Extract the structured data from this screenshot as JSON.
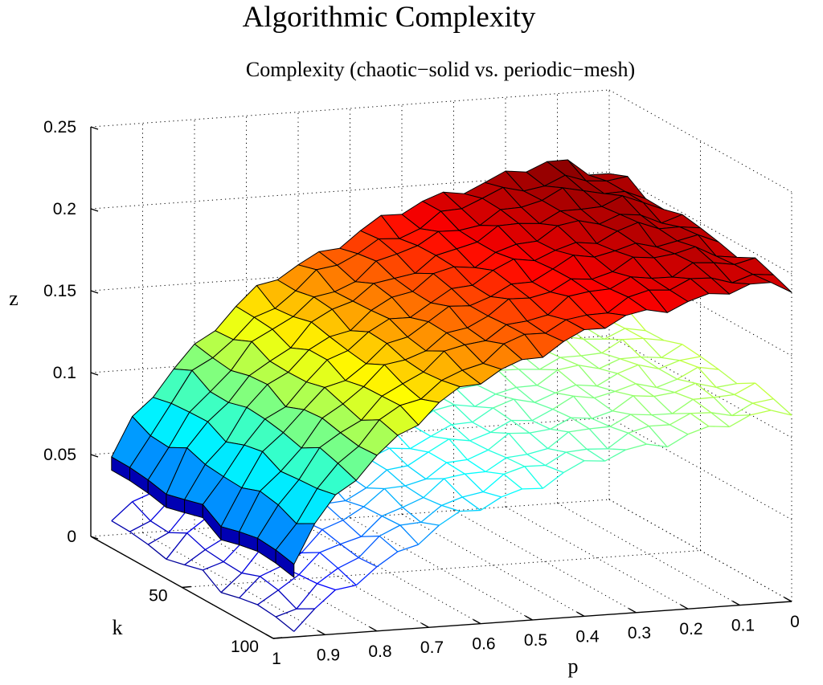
{
  "chart_data": {
    "type": "surface3d",
    "title": "Algorithmic Complexity",
    "subtitle": "Complexity (chaotic−solid vs. periodic−mesh)",
    "xlabel": "p",
    "ylabel": "k",
    "zlabel": "z",
    "x_ticks": [
      "1",
      "0.9",
      "0.8",
      "0.7",
      "0.6",
      "0.5",
      "0.4",
      "0.3",
      "0.2",
      "0.1",
      "0"
    ],
    "y_ticks": [
      "50",
      "100"
    ],
    "z_ticks": [
      "0",
      "0.05",
      "0.1",
      "0.15",
      "0.2",
      "0.25"
    ],
    "xlim": [
      1,
      0
    ],
    "ylim": [
      0,
      100
    ],
    "zlim": [
      0,
      0.25
    ],
    "grid": true,
    "colormap": "jet",
    "p_grid": [
      0.96,
      0.92,
      0.88,
      0.84,
      0.8,
      0.76,
      0.72,
      0.68,
      0.64,
      0.6,
      0.56,
      0.52,
      0.48,
      0.44,
      0.4,
      0.36,
      0.32,
      0.28,
      0.24,
      0.2,
      0.16,
      0.12,
      0.08,
      0.04,
      0.0
    ],
    "k_grid": [
      0,
      10,
      20,
      30,
      40,
      50,
      60,
      70,
      80,
      90,
      100
    ],
    "series": [
      {
        "style": "solid",
        "z_at_k_min": [
          0.046,
          0.068,
          0.085,
          0.1,
          0.112,
          0.123,
          0.133,
          0.142,
          0.15,
          0.157,
          0.163,
          0.169,
          0.175,
          0.18,
          0.184,
          0.189,
          0.193,
          0.197,
          0.2,
          0.203,
          0.205,
          0.207,
          0.206,
          0.202,
          0.2
        ],
        "z_at_k_max": [
          0.046,
          0.066,
          0.082,
          0.096,
          0.108,
          0.118,
          0.127,
          0.135,
          0.142,
          0.148,
          0.154,
          0.159,
          0.164,
          0.168,
          0.172,
          0.176,
          0.18,
          0.183,
          0.186,
          0.188,
          0.19,
          0.192,
          0.193,
          0.193,
          0.192
        ]
      },
      {
        "style": "mesh",
        "z_at_k_min": [
          0.007,
          0.016,
          0.027,
          0.036,
          0.044,
          0.052,
          0.059,
          0.065,
          0.071,
          0.076,
          0.081,
          0.085,
          0.089,
          0.093,
          0.096,
          0.099,
          0.102,
          0.105,
          0.108,
          0.11,
          0.112,
          0.114,
          0.115,
          0.117,
          0.118
        ],
        "z_at_k_max": [
          0.005,
          0.014,
          0.024,
          0.032,
          0.04,
          0.047,
          0.054,
          0.06,
          0.066,
          0.071,
          0.076,
          0.08,
          0.084,
          0.088,
          0.092,
          0.095,
          0.098,
          0.101,
          0.104,
          0.107,
          0.109,
          0.111,
          0.113,
          0.115,
          0.117
        ]
      }
    ]
  }
}
